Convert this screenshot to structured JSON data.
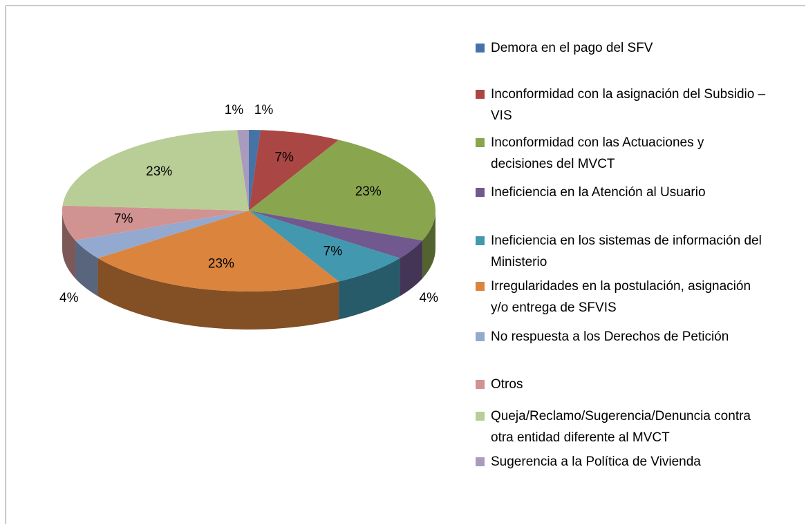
{
  "chart_data": {
    "type": "pie",
    "categories": [
      "Demora en el pago del SFV",
      "Inconformidad con la asignación del Subsidio – VIS",
      "Inconformidad con las Actuaciones y decisiones del MVCT",
      "Ineficiencia en la Atención al Usuario",
      "Ineficiencia en los sistemas de información del Ministerio",
      "Irregularidades en la postulación, asignación y/o entrega de SFVIS",
      "No respuesta a los Derechos de Petición",
      "Otros",
      "Queja/Reclamo/Sugerencia/Denuncia contra otra entidad diferente al MVCT",
      "Sugerencia a la Política de Vivienda"
    ],
    "values": [
      1,
      7,
      23,
      4,
      7,
      23,
      4,
      7,
      23,
      1
    ],
    "value_labels": [
      "1%",
      "7%",
      "23%",
      "4%",
      "7%",
      "23%",
      "4%",
      "7%",
      "23%",
      "1%"
    ],
    "colors": [
      "#4572a7",
      "#aa4643",
      "#89a54e",
      "#71588f",
      "#4198af",
      "#db843d",
      "#93a9cf",
      "#d19392",
      "#b9cd96",
      "#a99bbd"
    ],
    "legend": "right"
  }
}
